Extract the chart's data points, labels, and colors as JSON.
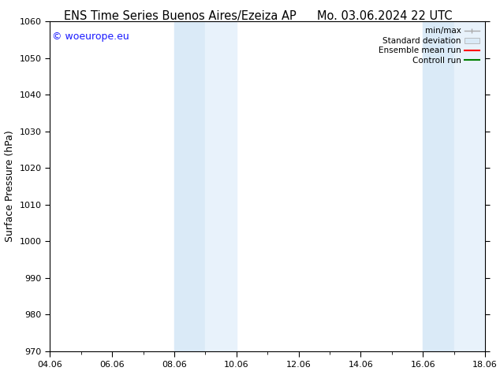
{
  "title_left": "ENS Time Series Buenos Aires/Ezeiza AP",
  "title_right": "Mo. 03.06.2024 22 UTC",
  "ylabel": "Surface Pressure (hPa)",
  "ylim": [
    970,
    1060
  ],
  "yticks": [
    970,
    980,
    990,
    1000,
    1010,
    1020,
    1030,
    1040,
    1050,
    1060
  ],
  "xtick_labels": [
    "04.06",
    "06.06",
    "08.06",
    "10.06",
    "12.06",
    "14.06",
    "16.06",
    "18.06"
  ],
  "xtick_positions": [
    0,
    2,
    4,
    6,
    8,
    10,
    12,
    14
  ],
  "xlim": [
    0,
    14
  ],
  "shade_regions": [
    {
      "xmin": 4.0,
      "xmax": 5.0
    },
    {
      "xmin": 5.0,
      "xmax": 6.0
    },
    {
      "xmin": 12.0,
      "xmax": 13.0
    },
    {
      "xmin": 13.0,
      "xmax": 14.0
    }
  ],
  "shade_colors": [
    "#daeaf7",
    "#e8f2fb",
    "#daeaf7",
    "#e8f2fb"
  ],
  "background_color": "#ffffff",
  "watermark_text": "© woeurope.eu",
  "watermark_color": "#1a1aff",
  "legend_entries": [
    {
      "label": "min/max",
      "color": "#aaaaaa",
      "lw": 1.0
    },
    {
      "label": "Standard deviation",
      "color": "#cce0f0",
      "lw": 6
    },
    {
      "label": "Ensemble mean run",
      "color": "#ff0000",
      "lw": 1.5
    },
    {
      "label": "Controll run",
      "color": "#008000",
      "lw": 1.5
    }
  ],
  "title_fontsize": 10.5,
  "ylabel_fontsize": 9,
  "tick_fontsize": 8,
  "watermark_fontsize": 9,
  "legend_fontsize": 7.5
}
